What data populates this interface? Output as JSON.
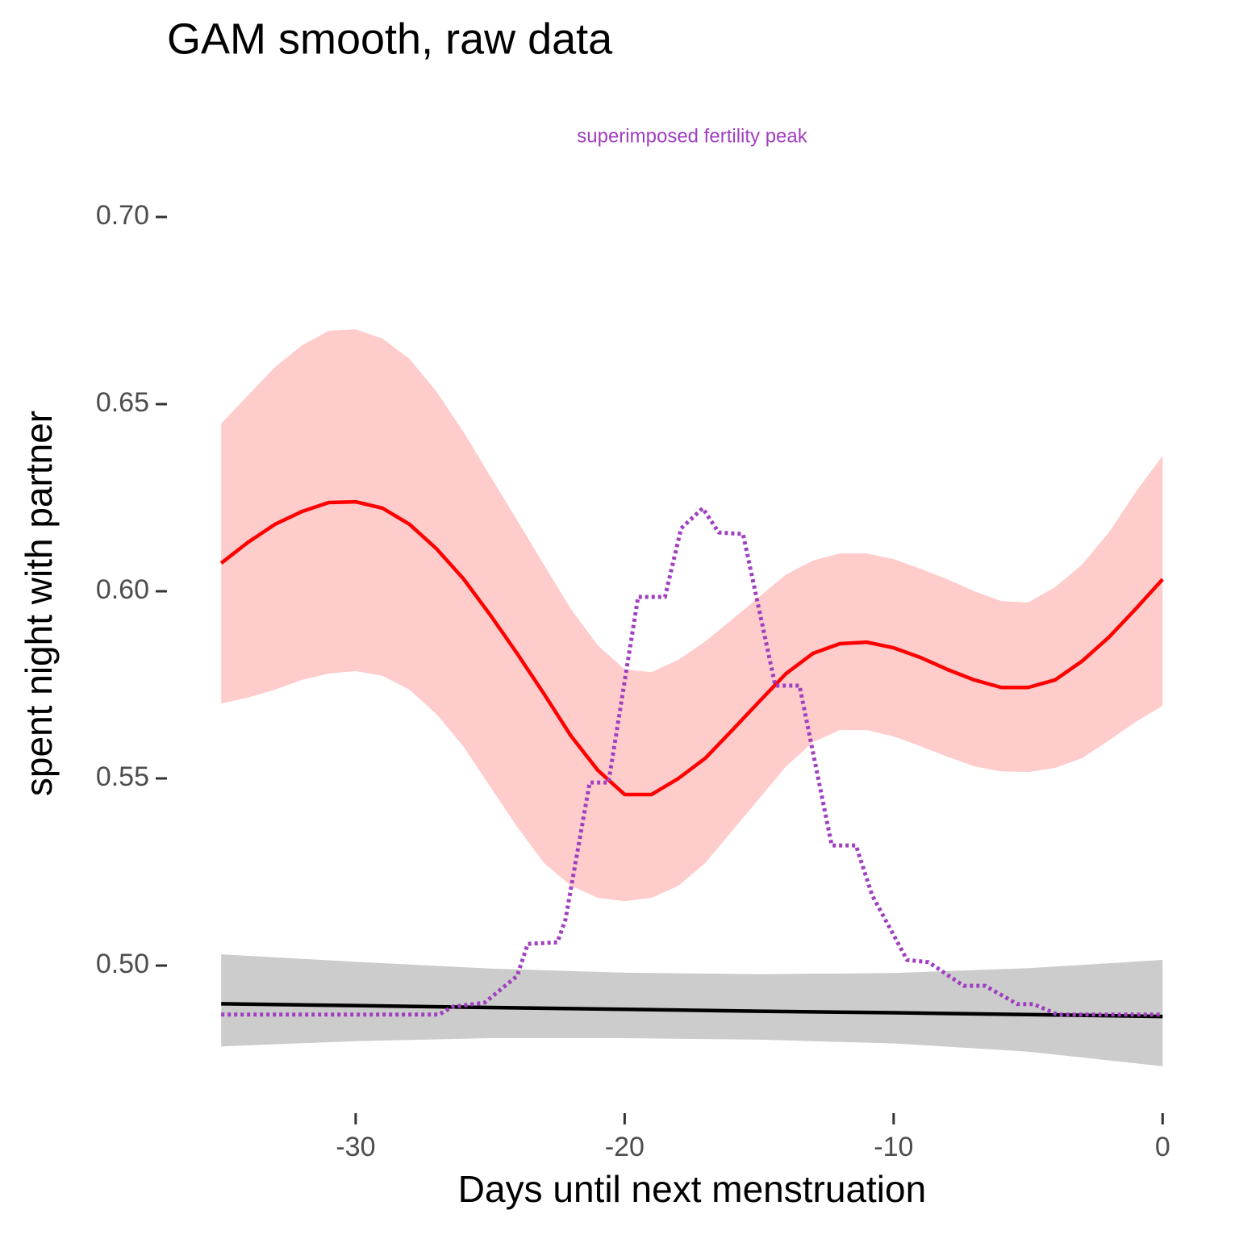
{
  "chart_data": {
    "type": "line",
    "title": "GAM smooth, raw data",
    "annotation": "superimposed fertility peak",
    "annotation_color": "#a040c0",
    "x_label": "Days until next menstruation",
    "y_label": "spent night with partner",
    "xlim": [
      -37,
      2
    ],
    "ylim": [
      0.463,
      0.715
    ],
    "xticks": [
      -30,
      -20,
      -10,
      0
    ],
    "yticks": [
      {
        "value": 0.5,
        "label": "0.50"
      },
      0.55,
      {
        "value": 0.6,
        "label": "0.60"
      },
      0.65,
      {
        "value": 0.7,
        "label": "0.70"
      }
    ],
    "grid": false,
    "series": [
      {
        "color": "#ff0000",
        "band_color": "#ffcccc",
        "linestyle": "solid",
        "x": [
          -35,
          -34,
          -33,
          -32,
          -31,
          -30,
          -29,
          -28,
          -27,
          -26,
          -25,
          -24,
          -23,
          -22,
          -21,
          -20,
          -19,
          -18,
          -17,
          -16,
          -15,
          -14,
          -13,
          -12,
          -11,
          -10,
          -9,
          -8,
          -7,
          -6,
          -5,
          -4,
          -3,
          -2,
          -1,
          0
        ],
        "values": [
          0.6075,
          0.6131,
          0.6179,
          0.6213,
          0.6237,
          0.6239,
          0.6222,
          0.6179,
          0.6114,
          0.6034,
          0.5937,
          0.5834,
          0.5726,
          0.5614,
          0.5522,
          0.5457,
          0.5457,
          0.55,
          0.5554,
          0.5629,
          0.5705,
          0.578,
          0.5834,
          0.586,
          0.5864,
          0.5849,
          0.5823,
          0.5791,
          0.5763,
          0.5743,
          0.5743,
          0.5763,
          0.5813,
          0.5877,
          0.5953,
          0.6032
        ],
        "upper": [
          0.6448,
          0.6524,
          0.6599,
          0.6657,
          0.6696,
          0.67,
          0.6675,
          0.6621,
          0.6534,
          0.6427,
          0.6308,
          0.619,
          0.6071,
          0.5953,
          0.5856,
          0.5791,
          0.5784,
          0.5817,
          0.5866,
          0.5925,
          0.5985,
          0.6045,
          0.6082,
          0.6101,
          0.6101,
          0.6086,
          0.606,
          0.6032,
          0.6,
          0.5974,
          0.597,
          0.6011,
          0.6071,
          0.6157,
          0.6265,
          0.6362
        ],
        "lower": [
          0.57,
          0.5716,
          0.5737,
          0.5763,
          0.578,
          0.5787,
          0.5774,
          0.5737,
          0.5672,
          0.5586,
          0.5478,
          0.5371,
          0.5274,
          0.5213,
          0.5181,
          0.5172,
          0.5181,
          0.5213,
          0.5274,
          0.536,
          0.5446,
          0.5532,
          0.5597,
          0.5629,
          0.5629,
          0.5612,
          0.5586,
          0.5558,
          0.5532,
          0.5519,
          0.5517,
          0.5528,
          0.5554,
          0.5601,
          0.5651,
          0.5694
        ]
      },
      {
        "color": "#000000",
        "band_color": "#cccccc",
        "linestyle": "solid",
        "x": [
          -35,
          -30,
          -25,
          -20,
          -15,
          -10,
          -5,
          0
        ],
        "values": [
          0.4898,
          0.4893,
          0.4888,
          0.4883,
          0.4878,
          0.4874,
          0.4869,
          0.4864
        ],
        "upper": [
          0.503,
          0.501,
          0.4992,
          0.4981,
          0.4977,
          0.498,
          0.4993,
          0.5015
        ],
        "lower": [
          0.4784,
          0.4798,
          0.4806,
          0.4806,
          0.4802,
          0.4792,
          0.477,
          0.4731
        ]
      },
      {
        "color": "#a040c0",
        "linestyle": "dotted",
        "x": [
          -35,
          -26.9,
          -26.4,
          -25.2,
          -24,
          -23.6,
          -22.5,
          -22.2,
          -21.3,
          -20.6,
          -19.5,
          -18.5,
          -17.9,
          -17.1,
          -16.5,
          -15.6,
          -14.4,
          -13.5,
          -12.3,
          -11.4,
          -10.8,
          -9.5,
          -8.7,
          -7.4,
          -6.6,
          -5.4,
          -4.8,
          -3.9,
          0
        ],
        "values": [
          0.4869,
          0.4869,
          0.489,
          0.4901,
          0.4972,
          0.5058,
          0.5062,
          0.5123,
          0.5489,
          0.5489,
          0.5985,
          0.5985,
          0.6168,
          0.6222,
          0.6157,
          0.6153,
          0.5748,
          0.5748,
          0.5321,
          0.5321,
          0.5188,
          0.5015,
          0.5009,
          0.4946,
          0.4946,
          0.4897,
          0.4897,
          0.4869,
          0.4869
        ]
      }
    ]
  }
}
